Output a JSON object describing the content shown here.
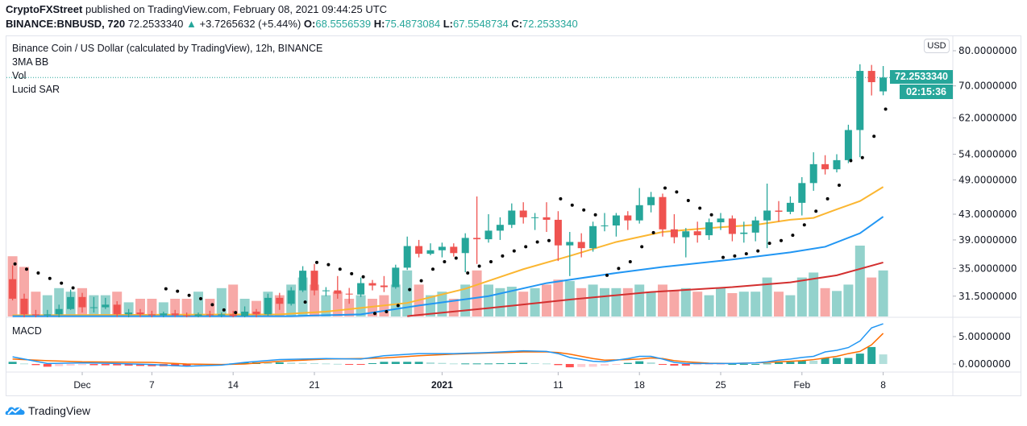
{
  "header": {
    "author": "CryptoFXStreet",
    "published": " published on TradingView.com, February 08, 2021 09:44:25 UTC",
    "symbol": "BINANCE:BNBUSD, 720",
    "last": "72.2533340",
    "change_icon": "triangle-up-icon",
    "change": "+3.7265632 (+5.44%)",
    "o_label": "O:",
    "o": "68.5556539",
    "h_label": "H:",
    "h": "75.4873084",
    "l_label": "L:",
    "l": "67.5548734",
    "c_label": "C:",
    "c": "72.2533340"
  },
  "legend": {
    "title": "Binance Coin / US Dollar (calculated by TradingView), 12h, BINANCE",
    "ind1": "3MA BB",
    "ind2": "Vol",
    "ind3": "Lucid SAR",
    "macd": "MACD"
  },
  "price_axis": {
    "currency_button": "USD",
    "last_price": "72.2533340",
    "countdown": "02:15:36"
  },
  "footer": {
    "brand": "TradingView"
  },
  "colors": {
    "up": "#26a69a",
    "down": "#ef5350",
    "vol_up": "#93d2cc",
    "vol_down": "#f7a9a7",
    "ma_fast": "#fbb631",
    "ma_mid": "#2196f3",
    "ma_slow": "#d32f2f",
    "sar": "#000000",
    "macd": "#2196f3",
    "signal": "#ff6d00",
    "hist_up_strong": "#26a69a",
    "hist_up_weak": "#b2dfdb",
    "hist_down_strong": "#ff5252",
    "hist_down_weak": "#ffcdd2"
  },
  "chart_data": {
    "type": "candlestick",
    "price_scale": "log",
    "ylim": [
      29.2,
      81
    ],
    "grid": false,
    "y_ticks": [
      "80.0000000",
      "70.0000000",
      "62.0000000",
      "54.0000000",
      "49.0000000",
      "43.0000000",
      "39.0000000",
      "35.0000000",
      "31.5000000"
    ],
    "x_ticks": [
      {
        "label": "Dec",
        "date": "2020-12-01"
      },
      {
        "label": "7",
        "date": "2020-12-07"
      },
      {
        "label": "14",
        "date": "2020-12-14"
      },
      {
        "label": "21",
        "date": "2020-12-21"
      },
      {
        "label": "2021",
        "date": "2021-01-01",
        "bold": true
      },
      {
        "label": "11",
        "date": "2021-01-11"
      },
      {
        "label": "18",
        "date": "2021-01-18"
      },
      {
        "label": "25",
        "date": "2021-01-25"
      },
      {
        "label": "Feb",
        "date": "2021-02-01"
      },
      {
        "label": "8",
        "date": "2021-02-08"
      }
    ],
    "candles_columns": [
      "date",
      "open",
      "high",
      "low",
      "close",
      "volume_pct_of_max"
    ],
    "candles": [
      [
        "2020-11-25",
        33.6,
        35.4,
        31.0,
        31.2,
        85
      ],
      [
        "2020-11-26",
        31.2,
        31.8,
        29.0,
        29.4,
        70
      ],
      [
        "2020-11-27",
        29.4,
        29.9,
        28.8,
        29.3,
        35
      ],
      [
        "2020-11-28",
        29.3,
        29.9,
        28.9,
        29.4,
        30
      ],
      [
        "2020-11-29",
        29.4,
        30.5,
        29.0,
        30.0,
        40
      ],
      [
        "2020-11-30",
        30.0,
        32.3,
        29.9,
        31.4,
        35
      ],
      [
        "2020-12-01",
        31.4,
        31.9,
        29.6,
        30.2,
        40
      ],
      [
        "2020-12-02",
        30.2,
        31.4,
        29.6,
        30.2,
        30
      ],
      [
        "2020-12-03",
        30.2,
        31.3,
        30.0,
        30.5,
        30
      ],
      [
        "2020-12-04",
        30.5,
        30.9,
        29.1,
        29.4,
        35
      ],
      [
        "2020-12-05",
        29.4,
        30.0,
        29.0,
        29.6,
        20
      ],
      [
        "2020-12-06",
        29.6,
        30.0,
        29.1,
        29.4,
        25
      ],
      [
        "2020-12-07",
        29.4,
        29.8,
        29.0,
        29.3,
        25
      ],
      [
        "2020-12-08",
        29.3,
        29.7,
        28.9,
        29.5,
        20
      ],
      [
        "2020-12-09",
        29.5,
        29.9,
        29.1,
        29.3,
        25
      ],
      [
        "2020-12-10",
        29.3,
        29.6,
        28.8,
        29.2,
        25
      ],
      [
        "2020-12-11",
        29.2,
        29.6,
        28.9,
        29.4,
        35
      ],
      [
        "2020-12-12",
        29.4,
        29.8,
        29.0,
        29.3,
        25
      ],
      [
        "2020-12-13",
        29.3,
        29.6,
        28.9,
        29.4,
        40
      ],
      [
        "2020-12-14",
        29.4,
        29.8,
        29.0,
        29.2,
        45
      ],
      [
        "2020-12-15",
        29.2,
        30.3,
        28.9,
        29.7,
        25
      ],
      [
        "2020-12-16",
        29.7,
        30.0,
        29.0,
        29.4,
        22
      ],
      [
        "2020-12-17",
        29.4,
        31.8,
        29.2,
        31.3,
        35
      ],
      [
        "2020-12-18",
        31.3,
        31.9,
        29.9,
        30.6,
        30
      ],
      [
        "2020-12-19",
        30.6,
        32.6,
        30.4,
        32.2,
        45
      ],
      [
        "2020-12-20",
        32.2,
        35.3,
        32.0,
        34.7,
        55
      ],
      [
        "2020-12-21",
        34.7,
        35.6,
        31.6,
        32.2,
        45
      ],
      [
        "2020-12-22",
        32.2,
        32.6,
        31.5,
        32.2,
        30
      ],
      [
        "2020-12-23",
        32.2,
        34.0,
        31.2,
        31.8,
        35
      ],
      [
        "2020-12-24",
        31.8,
        32.5,
        30.6,
        31.7,
        25
      ],
      [
        "2020-12-25",
        31.7,
        33.8,
        31.4,
        33.1,
        30
      ],
      [
        "2020-12-26",
        33.1,
        33.5,
        32.2,
        32.8,
        25
      ],
      [
        "2020-12-27",
        32.8,
        34.0,
        32.0,
        32.6,
        30
      ],
      [
        "2020-12-28",
        32.6,
        35.5,
        32.4,
        35.1,
        45
      ],
      [
        "2020-12-29",
        35.1,
        39.5,
        34.8,
        38.1,
        65
      ],
      [
        "2020-12-30",
        38.1,
        39.0,
        36.5,
        37.0,
        45
      ],
      [
        "2020-12-31",
        37.0,
        38.5,
        36.8,
        37.5,
        30
      ],
      [
        "2021-01-01",
        37.5,
        38.6,
        36.5,
        38.0,
        35
      ],
      [
        "2021-01-02",
        38.0,
        38.5,
        36.6,
        37.1,
        25
      ],
      [
        "2021-01-03",
        37.1,
        40.0,
        34.5,
        39.3,
        45
      ],
      [
        "2021-01-04",
        39.3,
        46.0,
        35.6,
        39.1,
        65
      ],
      [
        "2021-01-05",
        39.1,
        43.0,
        38.6,
        40.4,
        45
      ],
      [
        "2021-01-06",
        40.4,
        42.5,
        39.0,
        41.3,
        40
      ],
      [
        "2021-01-07",
        41.3,
        44.8,
        40.8,
        43.6,
        42
      ],
      [
        "2021-01-08",
        43.6,
        45.0,
        41.5,
        42.5,
        35
      ],
      [
        "2021-01-09",
        42.5,
        43.2,
        40.5,
        42.5,
        40
      ],
      [
        "2021-01-10",
        42.5,
        45.0,
        40.2,
        42.1,
        45
      ],
      [
        "2021-01-11",
        42.1,
        43.5,
        36.0,
        38.2,
        52
      ],
      [
        "2021-01-12",
        38.2,
        40.2,
        34.0,
        38.7,
        50
      ],
      [
        "2021-01-13",
        38.7,
        40.0,
        36.5,
        37.8,
        40
      ],
      [
        "2021-01-14",
        37.8,
        41.8,
        37.3,
        41.1,
        45
      ],
      [
        "2021-01-15",
        41.1,
        43.2,
        40.3,
        41.2,
        40
      ],
      [
        "2021-01-16",
        41.2,
        43.2,
        39.5,
        42.8,
        40
      ],
      [
        "2021-01-17",
        42.8,
        43.5,
        40.5,
        42.0,
        40
      ],
      [
        "2021-01-18",
        42.0,
        47.5,
        41.5,
        44.5,
        45
      ],
      [
        "2021-01-19",
        44.5,
        46.8,
        43.3,
        45.9,
        35
      ],
      [
        "2021-01-20",
        45.9,
        46.5,
        39.5,
        40.6,
        45
      ],
      [
        "2021-01-21",
        40.6,
        43.0,
        38.5,
        39.4,
        37
      ],
      [
        "2021-01-22",
        39.4,
        40.8,
        36.5,
        40.3,
        40
      ],
      [
        "2021-01-23",
        40.3,
        41.8,
        38.6,
        39.7,
        35
      ],
      [
        "2021-01-24",
        39.7,
        42.3,
        39.0,
        41.7,
        30
      ],
      [
        "2021-01-25",
        41.7,
        43.2,
        40.5,
        42.3,
        40
      ],
      [
        "2021-01-26",
        42.3,
        42.8,
        38.8,
        39.9,
        33
      ],
      [
        "2021-01-27",
        39.9,
        41.8,
        38.6,
        40.1,
        35
      ],
      [
        "2021-01-28",
        40.1,
        42.6,
        38.8,
        42.0,
        35
      ],
      [
        "2021-01-29",
        42.0,
        48.3,
        37.8,
        43.6,
        55
      ],
      [
        "2021-01-30",
        43.6,
        45.2,
        41.8,
        43.4,
        35
      ],
      [
        "2021-01-31",
        43.4,
        46.0,
        43.0,
        44.9,
        30
      ],
      [
        "2021-02-01",
        44.9,
        49.5,
        42.8,
        48.4,
        55
      ],
      [
        "2021-02-02",
        48.4,
        54.4,
        47.0,
        52.0,
        62
      ],
      [
        "2021-02-03",
        52.0,
        53.8,
        50.0,
        51.0,
        40
      ],
      [
        "2021-02-04",
        51.0,
        54.0,
        50.4,
        52.8,
        36
      ],
      [
        "2021-02-05",
        52.8,
        60.4,
        52.2,
        59.2,
        45
      ],
      [
        "2021-02-06",
        59.2,
        76.0,
        53.4,
        74.1,
        100
      ],
      [
        "2021-02-07",
        74.1,
        75.8,
        67.5,
        71.0,
        55
      ],
      [
        "2021-02-08",
        68.5556539,
        75.4873084,
        67.5548734,
        72.253334,
        65
      ]
    ],
    "moving_averages": [
      {
        "color_key": "ma_fast",
        "points": [
          [
            "2020-11-25",
            29.3
          ],
          [
            "2020-12-18",
            29.4
          ],
          [
            "2020-12-22",
            29.7
          ],
          [
            "2020-12-29",
            30.7
          ],
          [
            "2021-01-03",
            32.4
          ],
          [
            "2021-01-08",
            34.9
          ],
          [
            "2021-01-12",
            36.7
          ],
          [
            "2021-01-16",
            38.7
          ],
          [
            "2021-01-20",
            40.2
          ],
          [
            "2021-01-24",
            40.8
          ],
          [
            "2021-01-28",
            41.3
          ],
          [
            "2021-01-31",
            42.1
          ],
          [
            "2021-02-02",
            42.4
          ],
          [
            "2021-02-04",
            43.8
          ],
          [
            "2021-02-06",
            45.2
          ],
          [
            "2021-02-08",
            47.7
          ]
        ]
      },
      {
        "color_key": "ma_mid",
        "points": [
          [
            "2020-11-25",
            29.2
          ],
          [
            "2020-12-19",
            29.2
          ],
          [
            "2020-12-25",
            29.4
          ],
          [
            "2020-12-30",
            30.4
          ],
          [
            "2021-01-05",
            31.5
          ],
          [
            "2021-01-10",
            33.1
          ],
          [
            "2021-01-16",
            34.4
          ],
          [
            "2021-01-20",
            35.2
          ],
          [
            "2021-01-26",
            36.2
          ],
          [
            "2021-01-31",
            37.2
          ],
          [
            "2021-02-03",
            38.0
          ],
          [
            "2021-02-06",
            40.0
          ],
          [
            "2021-02-08",
            42.6
          ]
        ]
      },
      {
        "color_key": "ma_slow",
        "points": [
          [
            "2020-12-29",
            29.2
          ],
          [
            "2021-01-05",
            30.1
          ],
          [
            "2021-01-12",
            31.1
          ],
          [
            "2021-01-19",
            32.0
          ],
          [
            "2021-01-26",
            32.6
          ],
          [
            "2021-01-31",
            33.2
          ],
          [
            "2021-02-04",
            34.1
          ],
          [
            "2021-02-08",
            35.8
          ]
        ]
      }
    ],
    "sar": [
      35.6,
      34.9,
      34.4,
      33.7,
      33.1,
      32.5,
      null,
      null,
      null,
      null,
      null,
      null,
      null,
      32.4,
      32.1,
      31.6,
      31.2,
      30.5,
      29.9,
      29.6,
      null,
      null,
      null,
      null,
      null,
      30.8,
      35.8,
      35.5,
      34.9,
      34.3,
      33.9,
      29.5,
      29.7,
      30.4,
      32.3,
      33.4,
      34.9,
      35.9,
      36.4,
      34.4,
      35.3,
      35.9,
      36.7,
      37.4,
      38.0,
      38.7,
      38.9,
      45.6,
      44.5,
      43.7,
      42.9,
      34.1,
      35.0,
      35.9,
      38.0,
      40.1,
      47.5,
      46.8,
      45.3,
      44.0,
      42.9,
      36.5,
      36.7,
      37.0,
      37.4,
      38.5,
      38.9,
      39.7,
      41.3,
      43.5,
      45.6,
      48.0,
      52.7,
      53.3,
      57.8,
      64.1
    ],
    "macd": {
      "y_ticks": [
        "5.0000000",
        "0.0000000"
      ],
      "columns": [
        "date",
        "macd",
        "signal"
      ],
      "points": [
        [
          "2020-11-25",
          1.3,
          0.9
        ],
        [
          "2020-11-28",
          0.1,
          0.6
        ],
        [
          "2020-12-01",
          0.2,
          0.4
        ],
        [
          "2020-12-04",
          0.1,
          0.35
        ],
        [
          "2020-12-07",
          -0.1,
          0.3
        ],
        [
          "2020-12-10",
          -0.4,
          0.0
        ],
        [
          "2020-12-13",
          -0.2,
          -0.1
        ],
        [
          "2020-12-15",
          0.3,
          0.0
        ],
        [
          "2020-12-18",
          0.8,
          0.5
        ],
        [
          "2020-12-22",
          1.0,
          0.9
        ],
        [
          "2020-12-25",
          0.9,
          1.0
        ],
        [
          "2020-12-27",
          1.5,
          1.1
        ],
        [
          "2020-12-30",
          1.9,
          1.5
        ],
        [
          "2021-01-02",
          1.9,
          1.8
        ],
        [
          "2021-01-05",
          2.1,
          2.0
        ],
        [
          "2021-01-08",
          2.4,
          2.2
        ],
        [
          "2021-01-10",
          2.3,
          2.2
        ],
        [
          "2021-01-11",
          1.9,
          2.1
        ],
        [
          "2021-01-12",
          1.2,
          1.8
        ],
        [
          "2021-01-14",
          0.5,
          1.0
        ],
        [
          "2021-01-15",
          0.4,
          0.7
        ],
        [
          "2021-01-17",
          1.0,
          0.8
        ],
        [
          "2021-01-18",
          1.4,
          0.9
        ],
        [
          "2021-01-19",
          1.4,
          1.1
        ],
        [
          "2021-01-20",
          0.9,
          1.0
        ],
        [
          "2021-01-21",
          0.3,
          0.6
        ],
        [
          "2021-01-22",
          0.1,
          0.4
        ],
        [
          "2021-01-24",
          0.1,
          0.15
        ],
        [
          "2021-01-26",
          0.1,
          0.1
        ],
        [
          "2021-01-28",
          0.2,
          0.2
        ],
        [
          "2021-01-29",
          0.4,
          0.3
        ],
        [
          "2021-01-30",
          0.7,
          0.4
        ],
        [
          "2021-01-31",
          0.9,
          0.5
        ],
        [
          "2021-02-01",
          1.2,
          0.6
        ],
        [
          "2021-02-02",
          1.4,
          0.8
        ],
        [
          "2021-02-03",
          2.2,
          1.1
        ],
        [
          "2021-02-04",
          2.5,
          1.4
        ],
        [
          "2021-02-05",
          3.0,
          1.9
        ],
        [
          "2021-02-06",
          4.2,
          2.3
        ],
        [
          "2021-02-07",
          6.6,
          3.5
        ],
        [
          "2021-02-08",
          7.35,
          5.6
        ]
      ]
    }
  }
}
